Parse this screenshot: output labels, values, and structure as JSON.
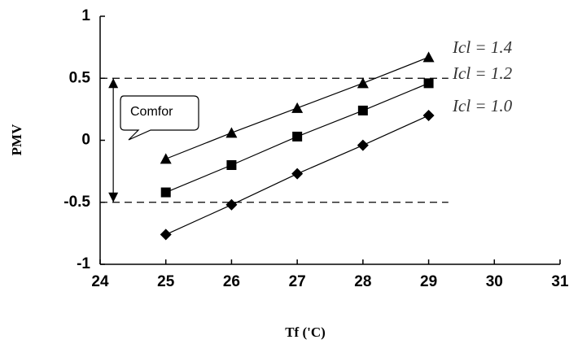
{
  "chart_data": {
    "type": "line",
    "x_label": "Tf ('C)",
    "y_label": "PMV",
    "x": [
      25,
      26,
      27,
      28,
      29
    ],
    "series": [
      {
        "name": "Icl = 1.4",
        "marker": "triangle",
        "color": "#000000",
        "values": [
          -0.15,
          0.06,
          0.26,
          0.46,
          0.67
        ]
      },
      {
        "name": "Icl = 1.2",
        "marker": "square",
        "color": "#000000",
        "values": [
          -0.42,
          -0.2,
          0.03,
          0.24,
          0.46
        ]
      },
      {
        "name": "Icl = 1.0",
        "marker": "diamond",
        "color": "#000000",
        "values": [
          -0.76,
          -0.52,
          -0.27,
          -0.04,
          0.2
        ]
      }
    ],
    "reference_lines": [
      0.5,
      -0.5
    ],
    "annotation": "Comfor",
    "xlim": [
      24,
      31
    ],
    "xticks": [
      24,
      25,
      26,
      27,
      28,
      29,
      30,
      31
    ],
    "ylim": [
      -1,
      1
    ],
    "yticks": [
      1,
      0.5,
      0,
      -0.5,
      -1
    ]
  }
}
